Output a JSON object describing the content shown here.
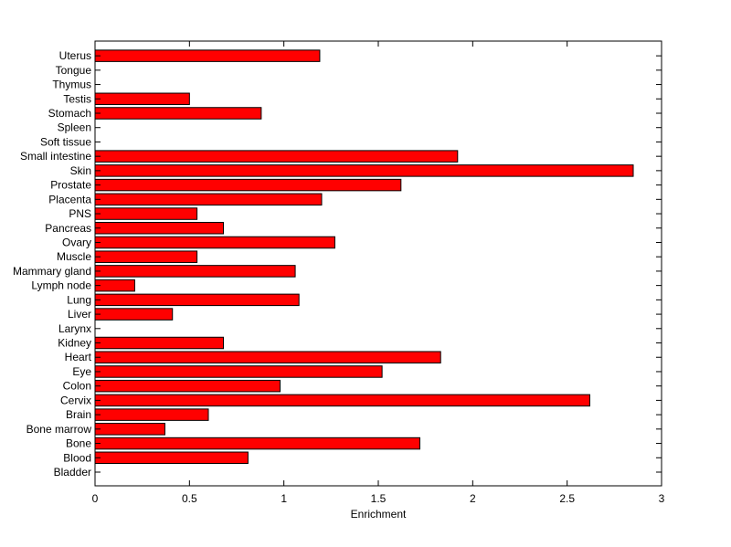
{
  "chart_data": {
    "type": "bar",
    "orientation": "horizontal",
    "title": "",
    "xlabel": "Enrichment",
    "ylabel": "",
    "xlim": [
      0,
      3
    ],
    "x_ticks": [
      0,
      0.5,
      1,
      1.5,
      2,
      2.5,
      3
    ],
    "x_tick_labels": [
      "0",
      "0.5",
      "1",
      "1.5",
      "2",
      "2.5",
      "3"
    ],
    "grid": false,
    "legend": "none",
    "bar_color": "#ff0000",
    "bar_edge_color": "#000000",
    "categories": [
      "Bladder",
      "Blood",
      "Bone",
      "Bone marrow",
      "Brain",
      "Cervix",
      "Colon",
      "Eye",
      "Heart",
      "Kidney",
      "Larynx",
      "Liver",
      "Lung",
      "Lymph node",
      "Mammary gland",
      "Muscle",
      "Ovary",
      "Pancreas",
      "PNS",
      "Placenta",
      "Prostate",
      "Skin",
      "Small intestine",
      "Soft tissue",
      "Spleen",
      "Stomach",
      "Testis",
      "Thymus",
      "Tongue",
      "Uterus"
    ],
    "values": [
      0,
      0.81,
      1.72,
      0.37,
      0.6,
      2.62,
      0.98,
      1.52,
      1.83,
      0.68,
      0,
      0.41,
      1.08,
      0.21,
      1.06,
      0.54,
      1.27,
      0.68,
      0.54,
      1.2,
      1.62,
      2.85,
      1.92,
      0,
      0,
      0.88,
      0.5,
      0,
      0,
      1.19
    ]
  }
}
